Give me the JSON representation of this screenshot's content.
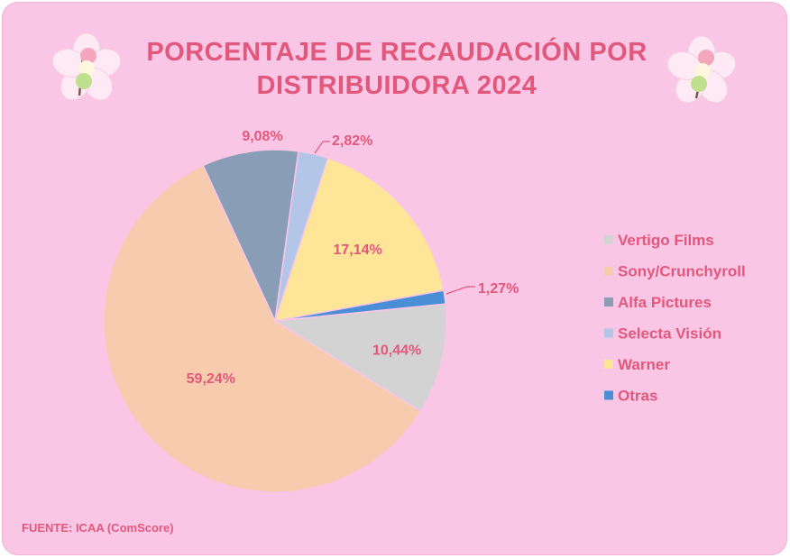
{
  "title": "PORCENTAJE DE RECAUDACIÓN POR DISTRIBUIDORA 2024",
  "source": "FUENTE: ICAA (ComScore)",
  "colors": {
    "background": "#f9c6e6",
    "text": "#e2587c"
  },
  "chart_data": {
    "type": "pie",
    "title": "PORCENTAJE DE RECAUDACIÓN POR DISTRIBUIDORA 2024",
    "legend_position": "right",
    "slices": [
      {
        "name": "Vertigo Films",
        "value": 10.44,
        "label": "10,44%",
        "color": "#d3d3d3"
      },
      {
        "name": "Sony/Crunchyroll",
        "value": 59.24,
        "label": "59,24%",
        "color": "#f7cbad"
      },
      {
        "name": "Alfa Pictures",
        "value": 9.08,
        "label": "9,08%",
        "color": "#8a9db6"
      },
      {
        "name": "Selecta Visión",
        "value": 2.82,
        "label": "2,82%",
        "color": "#b4c6e7"
      },
      {
        "name": "Warner",
        "value": 17.14,
        "label": "17,14%",
        "color": "#ffe597"
      },
      {
        "name": "Otras",
        "value": 1.27,
        "label": "1,27%",
        "color": "#4a8fd6"
      }
    ]
  },
  "decorations": {
    "left_icon": "sakura-dango-icon",
    "right_icon": "sakura-dango-icon"
  }
}
